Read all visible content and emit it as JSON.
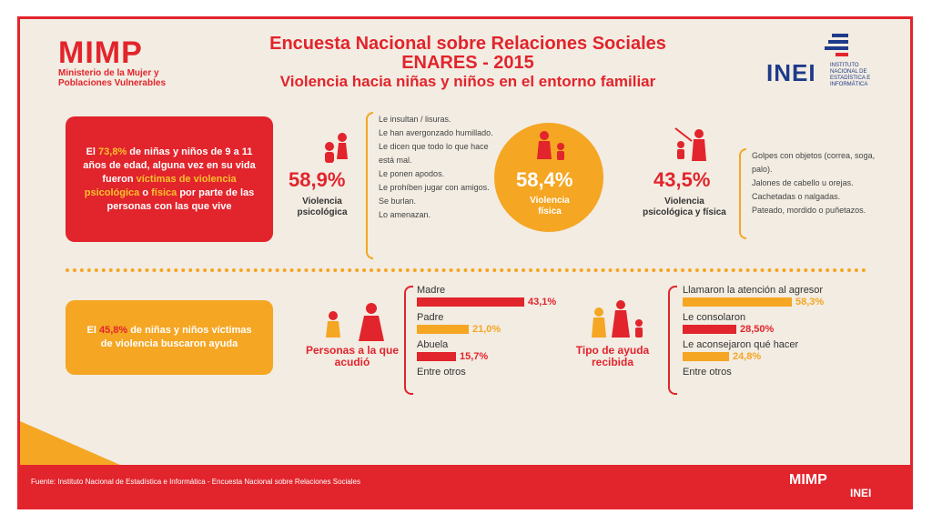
{
  "header": {
    "mimp_logo": "MIMP",
    "mimp_sub": "Ministerio de la Mujer y Poblaciones Vulnerables",
    "title_line1": "Encuesta Nacional sobre Relaciones Sociales",
    "title_line2": "ENARES - 2015",
    "title_line3": "Violencia hacia niñas y niños en el entorno familiar",
    "inei_logo": "INEI",
    "inei_sub": "INSTITUTO NACIONAL DE ESTADÍSTICA E INFORMÁTICA"
  },
  "box1": {
    "pre": "El ",
    "pct": "73,8%",
    "mid": " de niñas y niños de 9 a 11 años de edad, alguna vez en su vida fueron ",
    "hl1": "víctimas de violencia psicológica",
    "o": " o ",
    "hl2": "física",
    "post": " por parte de las personas con las que vive"
  },
  "psych": {
    "pct": "58,9%",
    "label": "Violencia psicológica",
    "items": [
      "Le insultan / lisuras.",
      "Le han avergonzado humillado.",
      "Le dicen que todo lo que hace está mal.",
      "Le ponen apodos.",
      "Le prohíben jugar con amigos.",
      "Se burlan.",
      "Lo amenazan."
    ]
  },
  "physical": {
    "pct": "58,4%",
    "label": "Violencia física"
  },
  "both": {
    "pct": "43,5%",
    "label": "Violencia psicológica y física",
    "items": [
      "Golpes con objetos (correa, soga, palo).",
      "Jalones de cabello u orejas.",
      "Cachetadas o nalgadas.",
      "Pateado, mordido o puñetazos."
    ]
  },
  "box2": {
    "pre": "El ",
    "pct": "45,8%",
    "post": " de niñas y niños víctimas de violencia buscaron ayuda"
  },
  "colors": {
    "red": "#e2242c",
    "orange": "#f5a623"
  },
  "chart_data": [
    {
      "type": "bar",
      "title": "Personas a la que acudió",
      "categories": [
        "Madre",
        "Padre",
        "Abuela",
        "Entre otros"
      ],
      "values": [
        43.1,
        21.0,
        15.7,
        null
      ],
      "labels": [
        "43,1%",
        "21,0%",
        "15,7%",
        ""
      ],
      "bar_colors": [
        "#e2242c",
        "#f5a623",
        "#e2242c",
        null
      ]
    },
    {
      "type": "bar",
      "title": "Tipo de ayuda recibida",
      "categories": [
        "Llamaron la atención al agresor",
        "Le consolaron",
        "Le aconsejaron qué hacer",
        "Entre otros"
      ],
      "values": [
        58.3,
        28.5,
        24.8,
        null
      ],
      "labels": [
        "58,3%",
        "28,50%",
        "24,8%",
        ""
      ],
      "bar_colors": [
        "#f5a623",
        "#e2242c",
        "#f5a623",
        null
      ]
    }
  ],
  "footer": {
    "source": "Fuente: Instituto Nacional de Estadística e Informática - Encuesta Nacional sobre Relaciones Sociales",
    "mimp_logo": "MIMP",
    "inei_logo": "INEI"
  }
}
